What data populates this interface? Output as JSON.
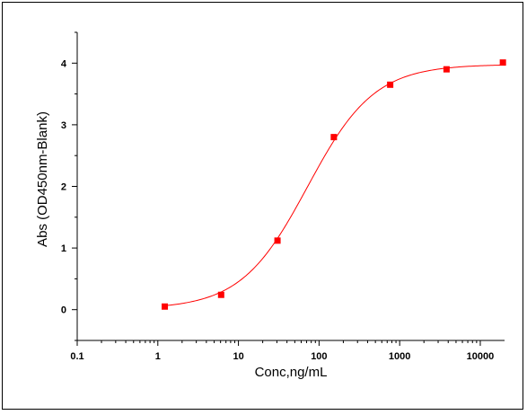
{
  "chart_data": {
    "type": "scatter",
    "title": "",
    "xlabel": "Conc,ng/mL",
    "ylabel": "Abs (OD450nm-Blank)",
    "x_scale": "log",
    "xlim": [
      0.1,
      20000
    ],
    "ylim": [
      -0.5,
      4.5
    ],
    "x_ticks": [
      0.1,
      1,
      10,
      100,
      1000,
      10000
    ],
    "x_tick_labels": [
      "0.1",
      "1",
      "10",
      "100",
      "1000",
      "10000"
    ],
    "y_ticks": [
      0,
      1,
      2,
      3,
      4
    ],
    "y_tick_labels": [
      "0",
      "1",
      "2",
      "3",
      "4"
    ],
    "grid": false,
    "legend": "none",
    "series": [
      {
        "x": [
          1.22,
          6.1,
          30.5,
          152.6,
          762.9,
          3815,
          19073
        ],
        "y": [
          0.05,
          0.24,
          1.12,
          2.8,
          3.65,
          3.9,
          4.01
        ],
        "marker": "square",
        "color": "#ff0000"
      }
    ],
    "fit": {
      "type": "four-parameter-logistic",
      "color": "#ff0000",
      "bottom": 0.01,
      "top": 3.98,
      "ec50": 72,
      "hill": 1.05
    }
  }
}
